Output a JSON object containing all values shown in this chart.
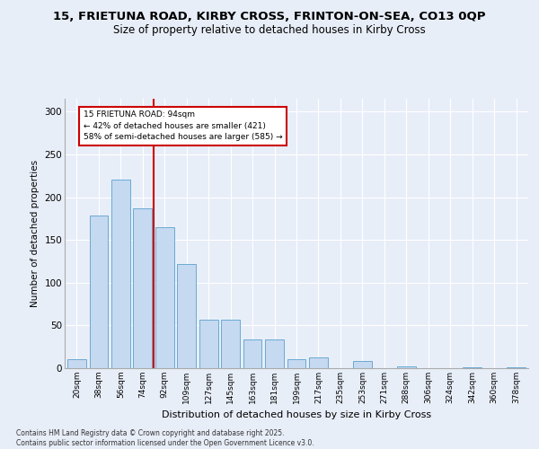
{
  "title1": "15, FRIETUNA ROAD, KIRBY CROSS, FRINTON-ON-SEA, CO13 0QP",
  "title2": "Size of property relative to detached houses in Kirby Cross",
  "xlabel": "Distribution of detached houses by size in Kirby Cross",
  "ylabel": "Number of detached properties",
  "bar_labels": [
    "20sqm",
    "38sqm",
    "56sqm",
    "74sqm",
    "92sqm",
    "109sqm",
    "127sqm",
    "145sqm",
    "163sqm",
    "181sqm",
    "199sqm",
    "217sqm",
    "235sqm",
    "253sqm",
    "271sqm",
    "288sqm",
    "306sqm",
    "324sqm",
    "342sqm",
    "360sqm",
    "378sqm"
  ],
  "bar_values": [
    11,
    178,
    220,
    187,
    165,
    122,
    57,
    57,
    34,
    34,
    11,
    13,
    0,
    8,
    0,
    2,
    0,
    0,
    1,
    0,
    1
  ],
  "bar_color": "#c5d9f0",
  "bar_edgecolor": "#6aaad4",
  "vline_x": 3.5,
  "vline_color": "#cc0000",
  "annotation_text": "15 FRIETUNA ROAD: 94sqm\n← 42% of detached houses are smaller (421)\n58% of semi-detached houses are larger (585) →",
  "annotation_box_color": "white",
  "annotation_box_edgecolor": "#cc0000",
  "ylim": [
    0,
    315
  ],
  "yticks": [
    0,
    50,
    100,
    150,
    200,
    250,
    300
  ],
  "footnote": "Contains HM Land Registry data © Crown copyright and database right 2025.\nContains public sector information licensed under the Open Government Licence v3.0.",
  "bg_color": "#e8eef8",
  "plot_bg_color": "#e8eef8",
  "grid_color": "#ffffff",
  "title_fontsize": 9.5,
  "subtitle_fontsize": 8.5
}
